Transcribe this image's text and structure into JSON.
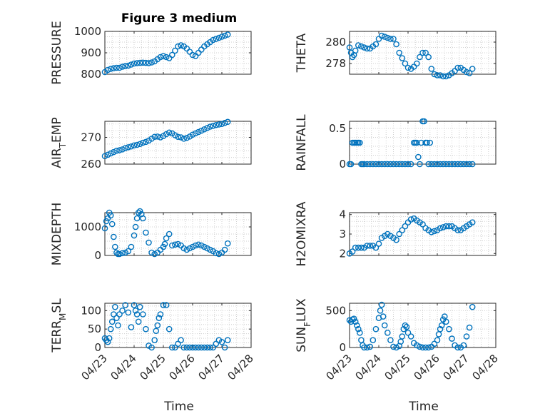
{
  "figure": {
    "title": "Figure 3 medium",
    "marker_color": "#0072BD",
    "xticks": [
      "04/23",
      "04/24",
      "04/25",
      "04/26",
      "04/27",
      "04/28"
    ],
    "xlabel": "Time"
  },
  "chart_data": [
    {
      "type": "scatter",
      "ylabel": "PRESSURE",
      "ylim": [
        800,
        1000
      ],
      "yticks": [
        800,
        900,
        1000
      ],
      "yticklabels": [
        "800",
        "900",
        "1000"
      ],
      "grid": true,
      "x": [
        0.0,
        0.1,
        0.2,
        0.3,
        0.4,
        0.5,
        0.6,
        0.7,
        0.8,
        0.9,
        1.0,
        1.1,
        1.2,
        1.3,
        1.4,
        1.5,
        1.6,
        1.7,
        1.8,
        1.9,
        2.0,
        2.1,
        2.2,
        2.3,
        2.4,
        2.5,
        2.6,
        2.7,
        2.8,
        2.9,
        3.0,
        3.1,
        3.2,
        3.3,
        3.4,
        3.5,
        3.6,
        3.7,
        3.8,
        3.9,
        4.0,
        4.1,
        4.2
      ],
      "y": [
        810,
        820,
        825,
        828,
        830,
        830,
        835,
        838,
        840,
        845,
        850,
        852,
        853,
        854,
        853,
        852,
        855,
        860,
        870,
        880,
        885,
        880,
        875,
        890,
        910,
        930,
        935,
        930,
        920,
        905,
        890,
        885,
        900,
        915,
        930,
        940,
        950,
        960,
        965,
        970,
        975,
        980,
        985
      ]
    },
    {
      "type": "scatter",
      "ylabel": "THETA",
      "ylim": [
        277,
        281
      ],
      "yticks": [
        278,
        280
      ],
      "yticklabels": [
        "278",
        "280"
      ],
      "grid": true,
      "x": [
        0.0,
        0.05,
        0.1,
        0.15,
        0.2,
        0.3,
        0.4,
        0.5,
        0.6,
        0.7,
        0.8,
        0.9,
        1.0,
        1.1,
        1.2,
        1.3,
        1.4,
        1.5,
        1.6,
        1.7,
        1.8,
        1.9,
        2.0,
        2.1,
        2.2,
        2.3,
        2.4,
        2.5,
        2.6,
        2.7,
        2.8,
        2.9,
        3.0,
        3.1,
        3.2,
        3.3,
        3.4,
        3.5,
        3.6,
        3.7,
        3.8,
        3.9,
        4.0,
        4.1,
        4.2
      ],
      "y": [
        279.5,
        279.0,
        278.6,
        278.8,
        279.2,
        279.7,
        279.6,
        279.5,
        279.4,
        279.4,
        279.6,
        279.8,
        280.3,
        280.6,
        280.5,
        280.4,
        280.3,
        280.3,
        279.8,
        279.0,
        278.5,
        278.0,
        277.6,
        277.5,
        277.7,
        278.0,
        278.6,
        279.0,
        279.0,
        278.6,
        277.5,
        277.0,
        276.9,
        276.9,
        276.8,
        276.8,
        276.9,
        277.1,
        277.3,
        277.6,
        277.6,
        277.4,
        277.2,
        277.1,
        277.5
      ]
    },
    {
      "type": "scatter",
      "ylabel": "AIR_TEMP",
      "ylim": [
        260,
        276
      ],
      "yticks": [
        260,
        270
      ],
      "yticklabels": [
        "260",
        "270"
      ],
      "grid": true,
      "x": [
        0.0,
        0.1,
        0.2,
        0.3,
        0.4,
        0.5,
        0.6,
        0.7,
        0.8,
        0.9,
        1.0,
        1.1,
        1.2,
        1.3,
        1.4,
        1.5,
        1.6,
        1.7,
        1.8,
        1.9,
        2.0,
        2.1,
        2.2,
        2.3,
        2.4,
        2.5,
        2.6,
        2.7,
        2.8,
        2.9,
        3.0,
        3.1,
        3.2,
        3.3,
        3.4,
        3.5,
        3.6,
        3.7,
        3.8,
        3.9,
        4.0,
        4.1,
        4.2
      ],
      "y": [
        263,
        263.5,
        264,
        264.5,
        265,
        265.2,
        265.5,
        266,
        266.3,
        266.6,
        267,
        267.2,
        267.5,
        268,
        268.3,
        268.8,
        269.5,
        270.2,
        270.3,
        270,
        270.5,
        271.2,
        271.8,
        271.5,
        270.8,
        270.2,
        270,
        269.5,
        269.8,
        270.3,
        271,
        271.5,
        272,
        272.5,
        273,
        273.5,
        274,
        274.3,
        274.6,
        274.8,
        275,
        275.4,
        275.8
      ]
    },
    {
      "type": "scatter",
      "ylabel": "RAINFALL",
      "ylim": [
        0,
        0.6
      ],
      "yticks": [
        0,
        0.5
      ],
      "yticklabels": [
        "0",
        "0.5"
      ],
      "grid": true,
      "x": [
        0.0,
        0.05,
        0.1,
        0.15,
        0.2,
        0.25,
        0.3,
        0.35,
        0.4,
        0.45,
        0.5,
        0.6,
        0.7,
        0.8,
        0.9,
        1.0,
        1.1,
        1.2,
        1.3,
        1.4,
        1.5,
        1.6,
        1.7,
        1.8,
        1.9,
        2.0,
        2.1,
        2.2,
        2.25,
        2.3,
        2.35,
        2.4,
        2.45,
        2.5,
        2.55,
        2.6,
        2.65,
        2.7,
        2.75,
        2.8,
        2.9,
        3.0,
        3.1,
        3.2,
        3.3,
        3.4,
        3.5,
        3.6,
        3.7,
        3.8,
        3.9,
        4.0,
        4.1,
        4.2
      ],
      "y": [
        0,
        0,
        0.3,
        0.3,
        0.3,
        0.3,
        0.3,
        0.3,
        0,
        0,
        0,
        0,
        0,
        0,
        0,
        0,
        0,
        0,
        0,
        0,
        0,
        0,
        0,
        0,
        0,
        0,
        0,
        0.3,
        0.3,
        0.3,
        0.1,
        0,
        0.3,
        0.6,
        0.6,
        0.3,
        0.3,
        0,
        0.3,
        0,
        0,
        0,
        0,
        0,
        0,
        0,
        0,
        0,
        0,
        0,
        0,
        0,
        0,
        0
      ]
    },
    {
      "type": "scatter",
      "ylabel": "MIXDEPTH",
      "ylim": [
        0,
        1500
      ],
      "yticks": [
        0,
        1000
      ],
      "yticklabels": [
        "0",
        "1000"
      ],
      "grid": true,
      "x": [
        0.0,
        0.05,
        0.1,
        0.15,
        0.2,
        0.25,
        0.3,
        0.35,
        0.4,
        0.45,
        0.5,
        0.6,
        0.7,
        0.8,
        0.9,
        1.0,
        1.05,
        1.1,
        1.15,
        1.2,
        1.25,
        1.3,
        1.4,
        1.5,
        1.6,
        1.7,
        1.8,
        1.9,
        2.0,
        2.05,
        2.1,
        2.2,
        2.3,
        2.4,
        2.5,
        2.6,
        2.7,
        2.8,
        2.9,
        3.0,
        3.1,
        3.2,
        3.3,
        3.4,
        3.5,
        3.6,
        3.7,
        3.8,
        3.9,
        4.0,
        4.1,
        4.2
      ],
      "y": [
        950,
        1200,
        1300,
        1500,
        1400,
        1100,
        650,
        300,
        100,
        50,
        50,
        80,
        100,
        150,
        300,
        700,
        1000,
        1300,
        1500,
        1550,
        1450,
        1300,
        800,
        450,
        100,
        50,
        100,
        200,
        300,
        400,
        600,
        750,
        350,
        380,
        400,
        350,
        250,
        200,
        250,
        300,
        350,
        380,
        350,
        300,
        250,
        200,
        150,
        80,
        50,
        100,
        200,
        420
      ]
    },
    {
      "type": "scatter",
      "ylabel": "H2OMIXRA",
      "ylim": [
        1.9,
        4.1
      ],
      "yticks": [
        2,
        3,
        4
      ],
      "yticklabels": [
        "2",
        "3",
        "4"
      ],
      "grid": true,
      "x": [
        0.0,
        0.1,
        0.2,
        0.3,
        0.4,
        0.5,
        0.6,
        0.7,
        0.8,
        0.9,
        1.0,
        1.1,
        1.2,
        1.3,
        1.4,
        1.5,
        1.6,
        1.7,
        1.8,
        1.9,
        2.0,
        2.1,
        2.2,
        2.3,
        2.4,
        2.5,
        2.6,
        2.7,
        2.8,
        2.9,
        3.0,
        3.1,
        3.2,
        3.3,
        3.4,
        3.5,
        3.6,
        3.7,
        3.8,
        3.9,
        4.0,
        4.1,
        4.2
      ],
      "y": [
        2.0,
        2.1,
        2.3,
        2.3,
        2.3,
        2.3,
        2.4,
        2.4,
        2.4,
        2.3,
        2.5,
        2.8,
        2.9,
        3.0,
        2.9,
        2.8,
        2.7,
        3.0,
        3.2,
        3.4,
        3.6,
        3.75,
        3.8,
        3.7,
        3.6,
        3.5,
        3.3,
        3.2,
        3.1,
        3.15,
        3.2,
        3.3,
        3.35,
        3.4,
        3.4,
        3.4,
        3.3,
        3.2,
        3.2,
        3.3,
        3.4,
        3.5,
        3.6
      ]
    },
    {
      "type": "scatter",
      "ylabel": "TERR_MSL",
      "ylim": [
        0,
        120
      ],
      "yticks": [
        0,
        50,
        100
      ],
      "yticklabels": [
        "0",
        "50",
        "100"
      ],
      "grid": true,
      "x": [
        0.0,
        0.05,
        0.1,
        0.15,
        0.2,
        0.25,
        0.3,
        0.35,
        0.4,
        0.45,
        0.5,
        0.6,
        0.7,
        0.8,
        0.9,
        1.0,
        1.05,
        1.1,
        1.15,
        1.2,
        1.3,
        1.4,
        1.5,
        1.6,
        1.7,
        1.75,
        1.8,
        1.85,
        1.9,
        2.0,
        2.1,
        2.2,
        2.3,
        2.4,
        2.5,
        2.6,
        2.7,
        2.8,
        2.9,
        3.0,
        3.1,
        3.2,
        3.3,
        3.4,
        3.5,
        3.6,
        3.7,
        3.8,
        3.9,
        4.0,
        4.1,
        4.2
      ],
      "y": [
        25,
        20,
        15,
        25,
        50,
        70,
        90,
        110,
        80,
        60,
        90,
        100,
        115,
        95,
        55,
        115,
        100,
        90,
        70,
        110,
        90,
        50,
        5,
        0,
        20,
        45,
        60,
        80,
        90,
        115,
        115,
        50,
        0,
        0,
        10,
        20,
        0,
        0,
        0,
        0,
        0,
        0,
        0,
        0,
        0,
        0,
        0,
        10,
        20,
        15,
        0,
        20
      ]
    },
    {
      "type": "scatter",
      "ylabel": "SUN_FLUX",
      "ylim": [
        0,
        600
      ],
      "yticks": [
        0,
        500
      ],
      "yticklabels": [
        "0",
        "500"
      ],
      "grid": true,
      "x": [
        0.0,
        0.05,
        0.1,
        0.15,
        0.2,
        0.25,
        0.3,
        0.35,
        0.4,
        0.45,
        0.5,
        0.6,
        0.7,
        0.8,
        0.9,
        1.0,
        1.05,
        1.1,
        1.15,
        1.2,
        1.3,
        1.4,
        1.5,
        1.6,
        1.7,
        1.75,
        1.8,
        1.85,
        1.9,
        1.95,
        2.0,
        2.1,
        2.2,
        2.3,
        2.4,
        2.5,
        2.6,
        2.7,
        2.8,
        2.9,
        3.0,
        3.05,
        3.1,
        3.15,
        3.2,
        3.25,
        3.3,
        3.4,
        3.5,
        3.6,
        3.7,
        3.8,
        3.9,
        4.0,
        4.1,
        4.2
      ],
      "y": [
        370,
        350,
        380,
        390,
        350,
        300,
        250,
        200,
        100,
        30,
        0,
        0,
        10,
        100,
        250,
        400,
        500,
        580,
        420,
        300,
        200,
        100,
        10,
        0,
        20,
        80,
        150,
        250,
        300,
        280,
        200,
        150,
        60,
        30,
        10,
        0,
        0,
        0,
        10,
        50,
        100,
        180,
        250,
        300,
        380,
        420,
        350,
        250,
        120,
        30,
        0,
        0,
        30,
        150,
        270,
        550
      ]
    }
  ]
}
